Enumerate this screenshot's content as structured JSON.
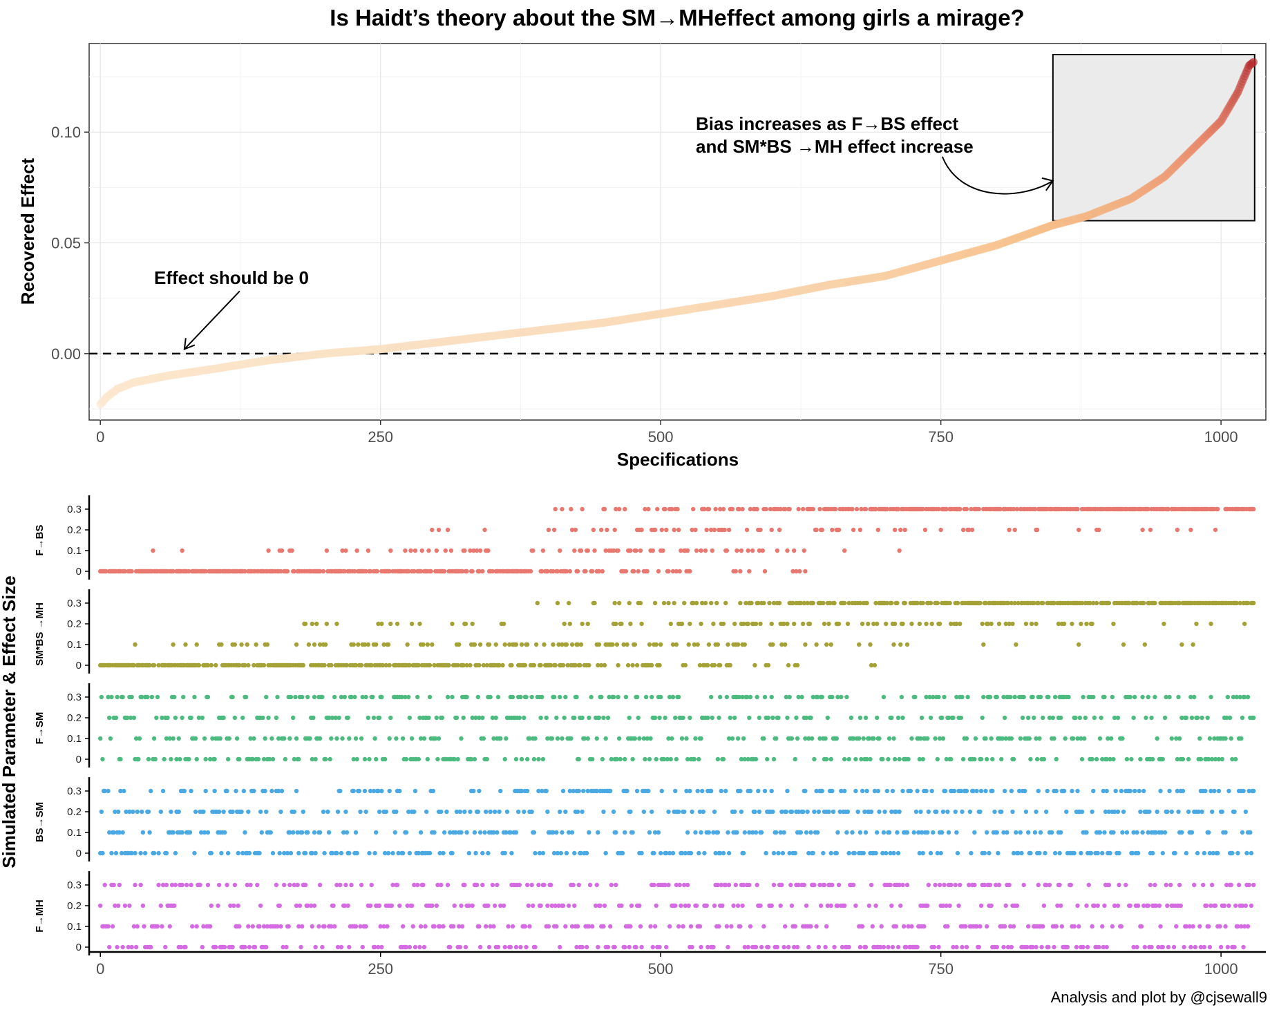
{
  "chart_data": [
    {
      "type": "scatter",
      "title": "Is Haidt’s   theory about the SM→MHeffect among girls a mirage?",
      "xlabel": "Specifications",
      "ylabel": "Recovered Effect",
      "xlim": [
        -10,
        1040
      ],
      "ylim": [
        -0.03,
        0.14
      ],
      "x_ticks": [
        0,
        250,
        500,
        750,
        1000
      ],
      "y_ticks": [
        0.0,
        0.05,
        0.1
      ],
      "y_tick_labels": [
        "0.00",
        "0.05",
        "0.10"
      ],
      "grid": true,
      "n_points": 1030,
      "color_scale": [
        "#fbe7cf",
        "#f6c08a",
        "#e7866a",
        "#b52a2c"
      ],
      "curve_knots": [
        {
          "x": 0,
          "y": -0.023
        },
        {
          "x": 5,
          "y": -0.02
        },
        {
          "x": 15,
          "y": -0.016
        },
        {
          "x": 30,
          "y": -0.013
        },
        {
          "x": 60,
          "y": -0.01
        },
        {
          "x": 100,
          "y": -0.007
        },
        {
          "x": 150,
          "y": -0.003
        },
        {
          "x": 200,
          "y": 0.0
        },
        {
          "x": 250,
          "y": 0.002
        },
        {
          "x": 300,
          "y": 0.005
        },
        {
          "x": 350,
          "y": 0.008
        },
        {
          "x": 400,
          "y": 0.011
        },
        {
          "x": 450,
          "y": 0.014
        },
        {
          "x": 500,
          "y": 0.018
        },
        {
          "x": 550,
          "y": 0.022
        },
        {
          "x": 600,
          "y": 0.026
        },
        {
          "x": 650,
          "y": 0.031
        },
        {
          "x": 700,
          "y": 0.035
        },
        {
          "x": 750,
          "y": 0.042
        },
        {
          "x": 800,
          "y": 0.049
        },
        {
          "x": 850,
          "y": 0.058
        },
        {
          "x": 880,
          "y": 0.062
        },
        {
          "x": 920,
          "y": 0.07
        },
        {
          "x": 950,
          "y": 0.08
        },
        {
          "x": 980,
          "y": 0.095
        },
        {
          "x": 1000,
          "y": 0.105
        },
        {
          "x": 1015,
          "y": 0.118
        },
        {
          "x": 1025,
          "y": 0.13
        },
        {
          "x": 1030,
          "y": 0.132
        }
      ],
      "reference_line": {
        "y": 0
      },
      "highlight_box": {
        "x": [
          850,
          1030
        ],
        "y": [
          0.06,
          0.135
        ]
      },
      "annotations": [
        {
          "text": "Effect should be 0",
          "arrow_to": {
            "x": 75,
            "y": 0.002
          }
        },
        {
          "lines": [
            "Bias increases as F→BS effect",
            "and SM*BS →MH effect increase"
          ],
          "arrow_to": {
            "x": 850,
            "y": 0.078
          }
        }
      ]
    },
    {
      "type": "scatter",
      "ylabel": "Simulated Parameter & Effect Size",
      "xlim": [
        -10,
        1040
      ],
      "x_ticks": [
        0,
        250,
        500,
        750,
        1000
      ],
      "levels": [
        0,
        0.1,
        0.2,
        0.3
      ],
      "level_labels": [
        "0",
        "0.1",
        "0.2",
        "0.3"
      ],
      "facets": [
        {
          "name": "F→BS",
          "color": "#e8776f",
          "trend": 0.95
        },
        {
          "name": "SM*BS →MH",
          "color": "#a4a137",
          "trend": 0.7
        },
        {
          "name": "F→SM",
          "color": "#4dbb80",
          "trend": 0
        },
        {
          "name": "BS→SM",
          "color": "#4aa8e3",
          "trend": 0
        },
        {
          "name": "F→MH",
          "color": "#d56be3",
          "trend": 0
        }
      ]
    }
  ],
  "caption": "Analysis and plot by @cjsewall9"
}
